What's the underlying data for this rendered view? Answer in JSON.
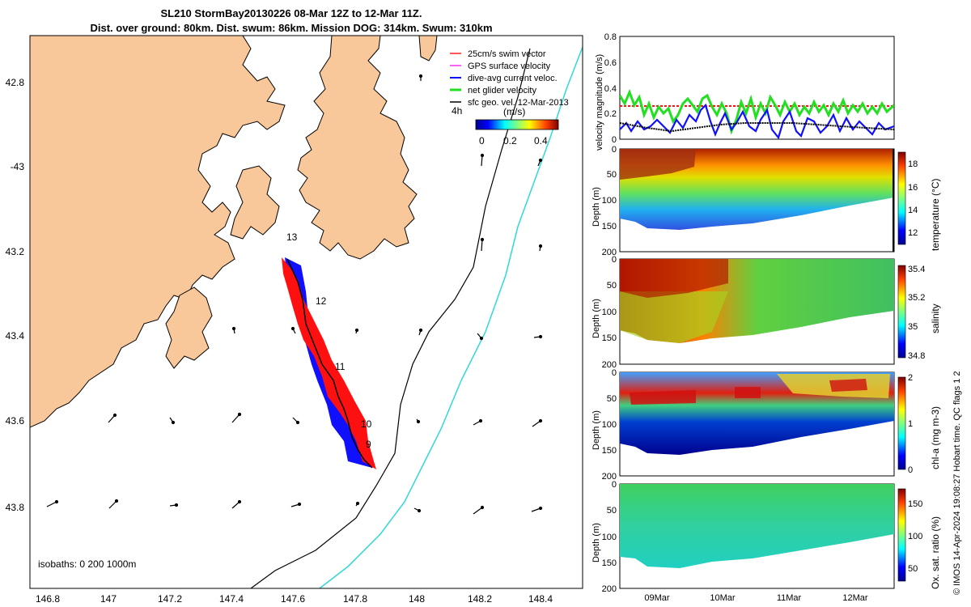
{
  "header": {
    "title_line1": "SL210 StormBay20130226 08-Mar 12Z to 12-Mar 11Z.",
    "title_line2": "Dist. over ground: 80km. Dist. swum: 86km. Mission DOG: 314km. Swum: 310km"
  },
  "map": {
    "lat_ticks": [
      "42.8",
      "-43",
      "43.2",
      "43.4",
      "43.6",
      "43.8"
    ],
    "lon_ticks": [
      "146.8",
      "147",
      "147.2",
      "147.4",
      "147.6",
      "147.8",
      "148",
      "148.2",
      "148.4"
    ],
    "legend": [
      {
        "label": "25cm/s swim vector",
        "color": "#ff2020"
      },
      {
        "label": "GPS surface velocity",
        "color": "#ff30ff"
      },
      {
        "label": "dive-avg current veloc.",
        "color": "#1010ff"
      },
      {
        "label": "net glider velocity",
        "color": "#20e020"
      },
      {
        "label": "sfc geo. vel. 12-Mar-2013",
        "color": "#000000"
      }
    ],
    "legend_4h": "4h",
    "colorbar_label": "(m/s)",
    "colorbar_ticks": [
      "0",
      "0.2",
      "0.4"
    ],
    "day_labels": [
      "13",
      "12",
      "11",
      "10",
      "9"
    ],
    "isobaths": "isobaths: 0   200  1000m",
    "colors": {
      "land": "#f8c89a",
      "track_red": "#ff1010",
      "track_blue": "#1010ff",
      "isobath_200": "#000000",
      "isobath_1000": "#30d8d8"
    }
  },
  "panels": {
    "velocity": {
      "ylabel": "velocity magnitude (m/s)",
      "yticks": [
        "0",
        "0.2",
        "0.4",
        "0.6",
        "0.8"
      ]
    },
    "temperature": {
      "ylabel": "Depth (m)",
      "cb_label": "temperature (°C)",
      "cb_ticks": [
        "18",
        "16",
        "14",
        "12"
      ]
    },
    "salinity": {
      "ylabel": "Depth (m)",
      "cb_label": "salinity",
      "cb_ticks": [
        "35.4",
        "35.2",
        "35",
        "34.8"
      ]
    },
    "chla": {
      "ylabel": "Depth (m)",
      "cb_label": "chl-a (mg m-3)",
      "cb_ticks": [
        "2",
        "1",
        "0"
      ]
    },
    "oxygen": {
      "ylabel": "Depth (m)",
      "cb_label": "Ox. sat. ratio (%)",
      "cb_ticks": [
        "150",
        "100",
        "50"
      ]
    },
    "depth_ticks": [
      "0",
      "50",
      "100",
      "150",
      "200"
    ],
    "x_ticks": [
      "09Mar",
      "10Mar",
      "11Mar",
      "12Mar"
    ]
  },
  "footer": {
    "credit": "© IMOS 14-Apr-2024 19:08:27 Hobart time. QC flags 1  2"
  }
}
